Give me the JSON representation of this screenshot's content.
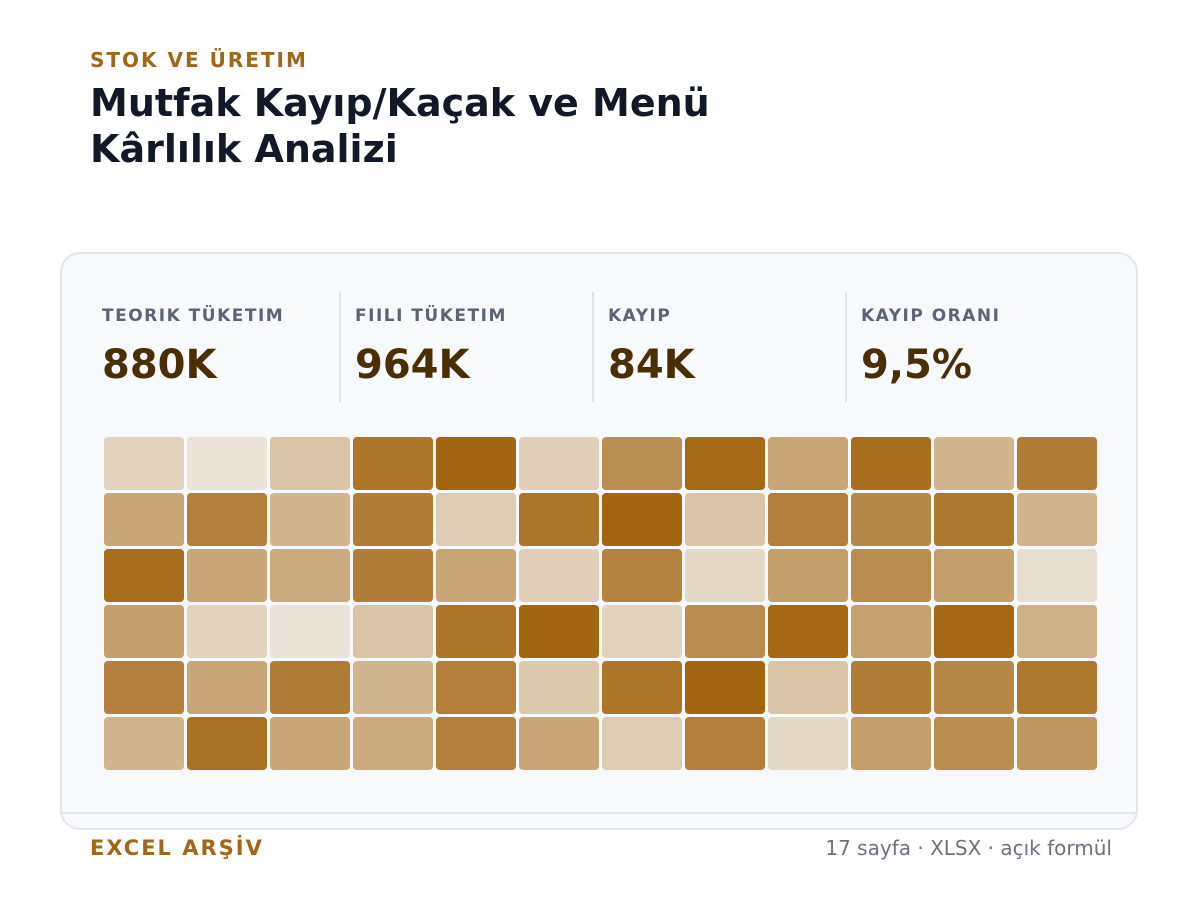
{
  "header": {
    "eyebrow": "STOK VE ÜRETIM",
    "title_line1": "Mutfak Kayıp/Kaçak ve Menü",
    "title_line2": "Kârlılık Analizi"
  },
  "stats": [
    {
      "label": "TEORIK TÜKETIM",
      "value": "880K"
    },
    {
      "label": "FIILI TÜKETIM",
      "value": "964K"
    },
    {
      "label": "KAYIP",
      "value": "84K"
    },
    {
      "label": "KAYIP ORANI",
      "value": "9,5%"
    }
  ],
  "heatmap": {
    "base_color": "#a0620c",
    "rows": [
      [
        0.25,
        0.15,
        0.35,
        0.88,
        0.98,
        0.28,
        0.7,
        0.95,
        0.55,
        0.92,
        0.45,
        0.82
      ],
      [
        0.55,
        0.8,
        0.45,
        0.82,
        0.3,
        0.88,
        0.98,
        0.35,
        0.8,
        0.75,
        0.85,
        0.45
      ],
      [
        0.92,
        0.55,
        0.52,
        0.82,
        0.55,
        0.28,
        0.78,
        0.22,
        0.6,
        0.72,
        0.6,
        0.18
      ],
      [
        0.6,
        0.25,
        0.15,
        0.35,
        0.88,
        0.98,
        0.25,
        0.72,
        0.96,
        0.58,
        0.96,
        0.48
      ],
      [
        0.8,
        0.55,
        0.82,
        0.45,
        0.8,
        0.32,
        0.88,
        0.98,
        0.35,
        0.82,
        0.75,
        0.85
      ],
      [
        0.45,
        0.9,
        0.55,
        0.52,
        0.8,
        0.55,
        0.3,
        0.8,
        0.22,
        0.6,
        0.72,
        0.65
      ]
    ]
  },
  "footer": {
    "left": "EXCEL ARŞİV",
    "right": "17 sayfa · XLSX · açık formül"
  }
}
